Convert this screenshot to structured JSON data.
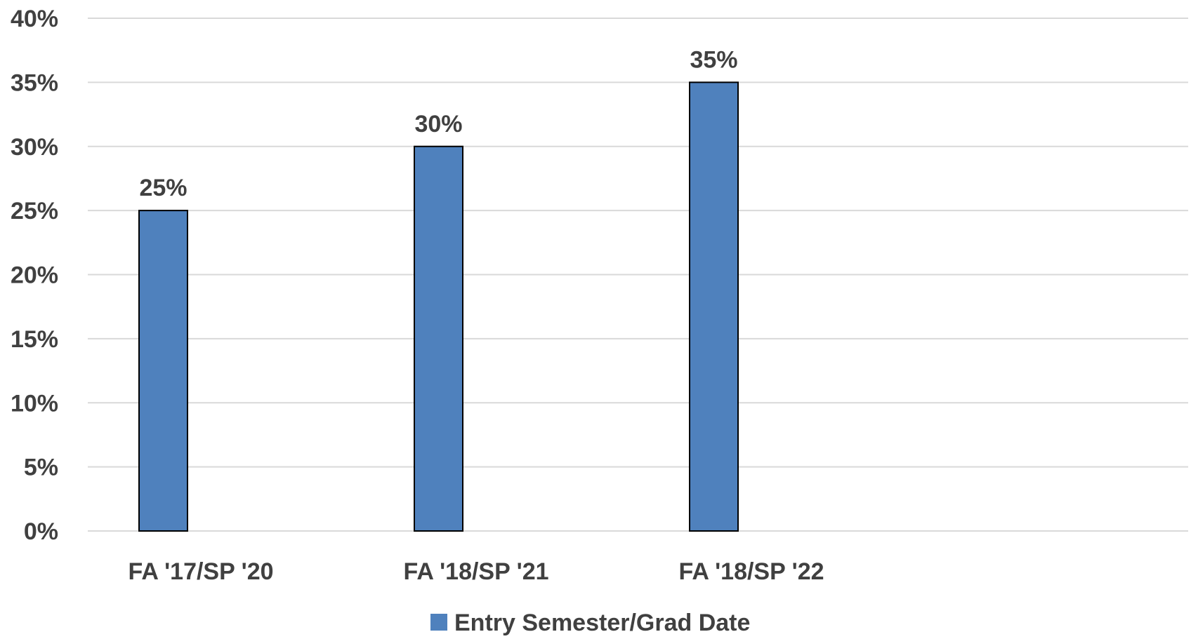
{
  "chart_data": {
    "type": "bar",
    "categories": [
      "FA '17/SP '20",
      "FA '18/SP '21",
      "FA '18/SP '22"
    ],
    "series": [
      {
        "name": "Entry Semester/Grad Date",
        "values": [
          25,
          30,
          35
        ],
        "color": "#4f81bd"
      }
    ],
    "data_labels": [
      "25%",
      "30%",
      "35%"
    ],
    "y_ticks": [
      0,
      5,
      10,
      15,
      20,
      25,
      30,
      35,
      40
    ],
    "y_tick_labels": [
      "0%",
      "5%",
      "10%",
      "15%",
      "20%",
      "25%",
      "30%",
      "35%",
      "40%"
    ],
    "ylim": [
      0,
      40
    ],
    "grid": true,
    "legend_position": "bottom",
    "title": "",
    "xlabel": "",
    "ylabel": ""
  }
}
